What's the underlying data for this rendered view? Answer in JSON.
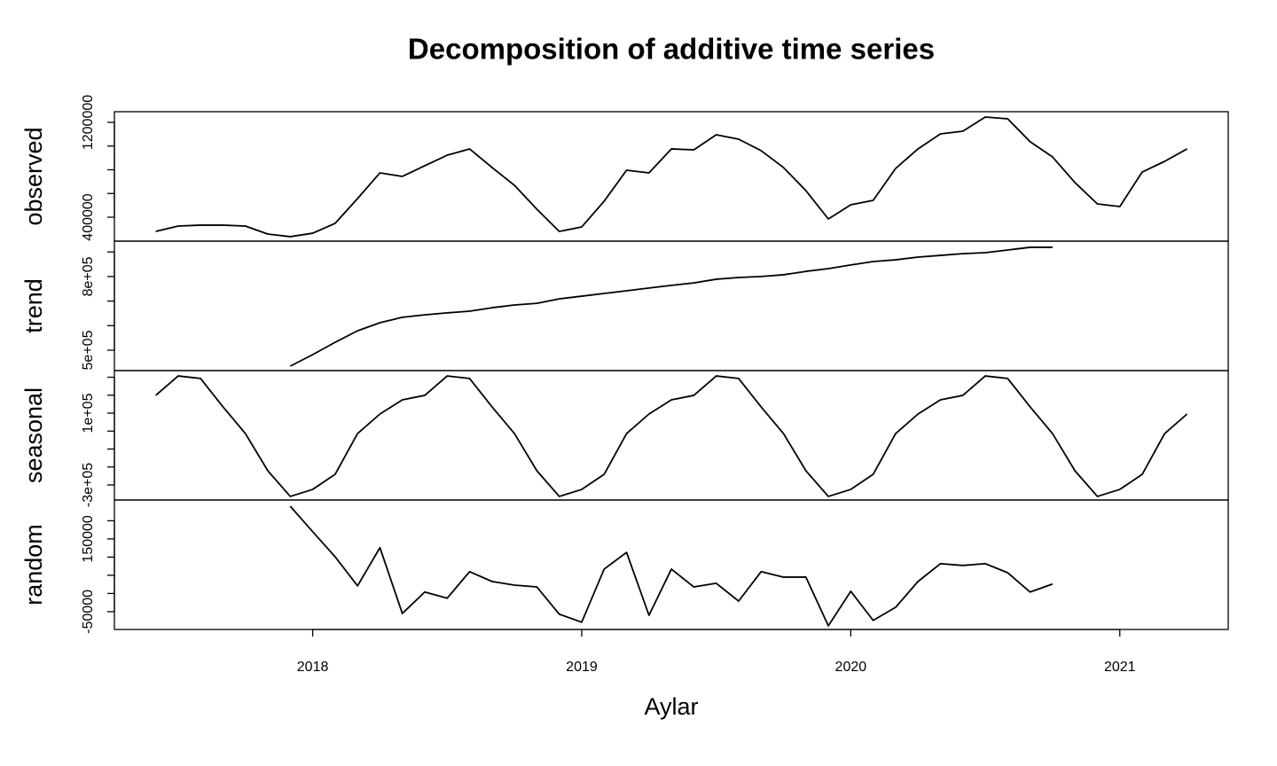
{
  "chart_data": {
    "type": "line",
    "title": "Decomposition of additive time series",
    "x_label": "Aylar",
    "color": "#000000",
    "x": [
      2017.4167,
      2017.5,
      2017.5833,
      2017.6667,
      2017.75,
      2017.8333,
      2017.9167,
      2018.0,
      2018.0833,
      2018.1667,
      2018.25,
      2018.3333,
      2018.4167,
      2018.5,
      2018.5833,
      2018.6667,
      2018.75,
      2018.8333,
      2018.9167,
      2019.0,
      2019.0833,
      2019.1667,
      2019.25,
      2019.3333,
      2019.4167,
      2019.5,
      2019.5833,
      2019.6667,
      2019.75,
      2019.8333,
      2019.9167,
      2020.0,
      2020.0833,
      2020.1667,
      2020.25,
      2020.3333,
      2020.4167,
      2020.5,
      2020.5833,
      2020.6667,
      2020.75,
      2020.8333,
      2020.9167,
      2021.0,
      2021.0833,
      2021.1667,
      2021.25
    ],
    "xlim": [
      2017.263,
      2021.403
    ],
    "xticks": [
      2018,
      2019,
      2020,
      2021
    ],
    "panels": [
      {
        "name": "observed",
        "values": [
          280000,
          325000,
          333000,
          333000,
          325000,
          258000,
          236000,
          265000,
          348000,
          557000,
          774000,
          744000,
          834000,
          923000,
          976000,
          819000,
          669000,
          467000,
          280000,
          318000,
          535000,
          796000,
          774000,
          976000,
          968000,
          1095000,
          1058000,
          961000,
          819000,
          624000,
          385000,
          505000,
          542000,
          811000,
          976000,
          1103000,
          1125000,
          1245000,
          1230000,
          1036000,
          908000,
          692000,
          512000,
          490000,
          781000,
          871000,
          976000
        ],
        "ylim": [
          198100,
          1289700
        ],
        "yticks": [
          400000,
          1200000
        ],
        "minor_yticks": [
          600000,
          800000,
          1000000
        ]
      },
      {
        "name": "trend",
        "values": [
          null,
          null,
          null,
          null,
          null,
          null,
          435000,
          482000,
          532000,
          579000,
          612000,
          634000,
          644000,
          652000,
          659000,
          673000,
          684000,
          691000,
          709000,
          720000,
          731000,
          742000,
          753000,
          764000,
          774000,
          789000,
          796000,
          800000,
          807000,
          821000,
          832000,
          847000,
          861000,
          868000,
          879000,
          886000,
          893000,
          897000,
          908000,
          919000,
          919000,
          null,
          null,
          null,
          null,
          null,
          null
        ],
        "ylim": [
          417000,
          944000
        ],
        "yticks": [
          {
            "value": 500000,
            "label": "5e+05"
          },
          {
            "value": 800000,
            "label": "8e+05"
          }
        ],
        "minor_yticks": [
          600000,
          700000,
          900000
        ]
      },
      {
        "name": "seasonal",
        "values": [
          199000,
          307000,
          293000,
          135000,
          -14000,
          -221000,
          -364000,
          -325000,
          -241000,
          -14000,
          95000,
          174000,
          199000,
          307000,
          293000,
          135000,
          -14000,
          -221000,
          -364000,
          -325000,
          -241000,
          -14000,
          95000,
          174000,
          199000,
          307000,
          293000,
          135000,
          -14000,
          -221000,
          -364000,
          -325000,
          -241000,
          -14000,
          95000,
          174000,
          199000,
          307000,
          293000,
          135000,
          -14000,
          -221000,
          -364000,
          -325000,
          -241000,
          -14000,
          95000
        ],
        "ylim": [
          -384000,
          337000
        ],
        "yticks": [
          {
            "value": -300000,
            "label": "-3e+05"
          },
          {
            "value": 100000,
            "label": "1e+05"
          }
        ],
        "minor_yticks": [
          -200000,
          -100000,
          0,
          200000,
          300000
        ]
      },
      {
        "name": "random",
        "values": [
          null,
          null,
          null,
          null,
          null,
          null,
          240000,
          170000,
          101000,
          21000,
          126000,
          -55000,
          4000,
          -13000,
          60000,
          33000,
          23000,
          18000,
          -57000,
          -79000,
          67000,
          113000,
          -60000,
          67000,
          18000,
          28000,
          -21000,
          60000,
          45000,
          45000,
          -89000,
          6000,
          -74000,
          -38000,
          33000,
          82000,
          77000,
          82000,
          57000,
          4000,
          26000,
          null,
          null,
          null,
          null,
          null,
          null
        ],
        "ylim": [
          -99000,
          257000
        ],
        "yticks": [
          -50000,
          150000
        ],
        "minor_yticks": [
          0,
          50000,
          100000,
          200000
        ]
      }
    ]
  }
}
